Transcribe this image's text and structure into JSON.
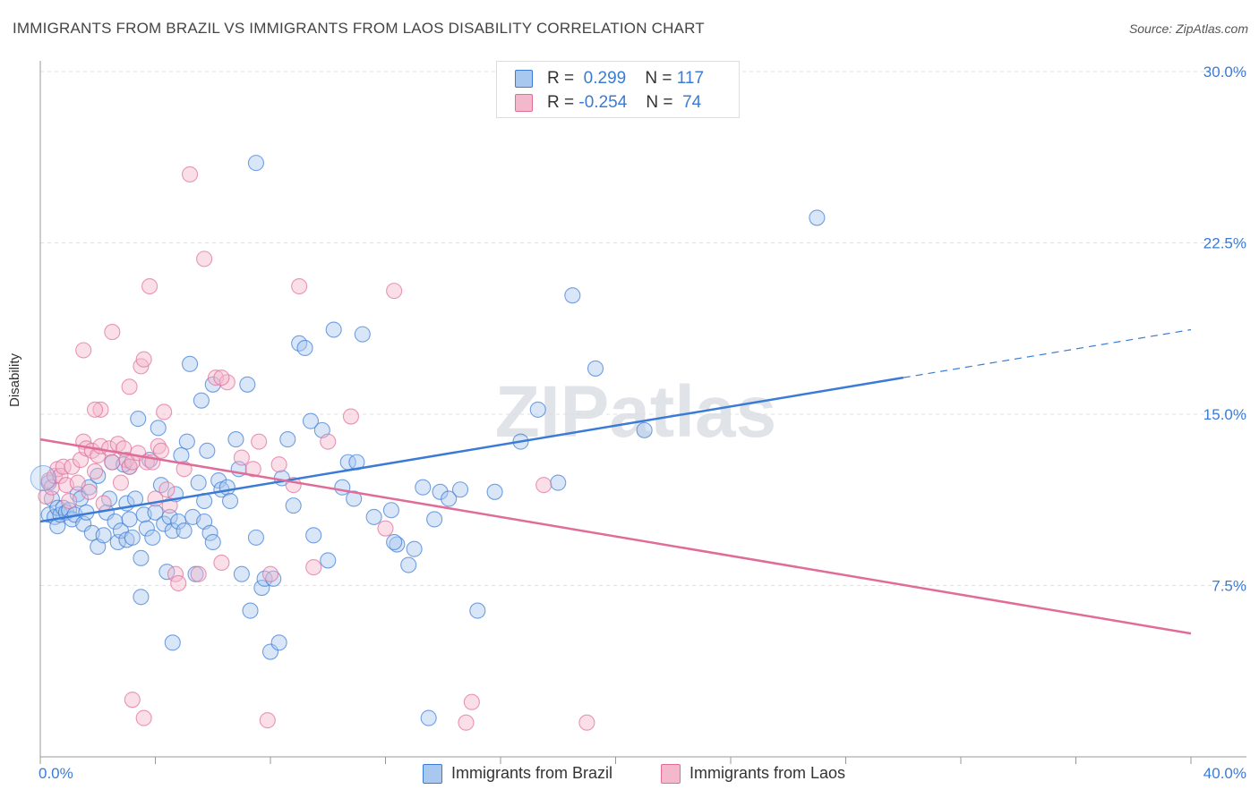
{
  "title": "IMMIGRANTS FROM BRAZIL VS IMMIGRANTS FROM LAOS DISABILITY CORRELATION CHART",
  "source": "Source: ZipAtlas.com",
  "watermark": "ZIPatlas",
  "legend": {
    "rows": [
      {
        "r_label": "R =",
        "r_value": "0.299",
        "n_label": "N =",
        "n_value": "117"
      },
      {
        "r_label": "R =",
        "r_value": "-0.254",
        "n_label": "N =",
        "n_value": "74"
      }
    ]
  },
  "colors": {
    "brazil": "#3a7bd5",
    "brazil_fill": "#a9c8f0",
    "laos": "#e06c98",
    "laos_fill": "#f4b8cc",
    "grid": "#e0e0e0",
    "tick_label": "#3a7bd5"
  },
  "chart_data": {
    "type": "scatter",
    "title": "IMMIGRANTS FROM BRAZIL VS IMMIGRANTS FROM LAOS DISABILITY CORRELATION CHART",
    "xlabel": "",
    "ylabel": "Disability",
    "xlim": [
      0,
      40
    ],
    "ylim": [
      0,
      30
    ],
    "x_tick_labels": [
      "0.0%",
      "40.0%"
    ],
    "y_ticks": [
      7.5,
      15.0,
      22.5,
      30.0
    ],
    "y_tick_labels": [
      "7.5%",
      "15.0%",
      "22.5%",
      "30.0%"
    ],
    "grid": true,
    "legend_position": "top-center",
    "series": [
      {
        "name": "Immigrants from Brazil",
        "color": "#3a7bd5",
        "trend": {
          "x": [
            0,
            30.0
          ],
          "y": [
            10.3,
            16.6
          ],
          "extend_dashed_to": {
            "x": 40,
            "y": 18.7
          }
        },
        "points": [
          [
            0.3,
            12.0
          ],
          [
            0.3,
            10.6
          ],
          [
            0.4,
            11.3
          ],
          [
            0.5,
            10.5
          ],
          [
            0.6,
            10.9
          ],
          [
            0.6,
            10.1
          ],
          [
            0.7,
            10.6
          ],
          [
            0.8,
            10.9
          ],
          [
            0.9,
            10.7
          ],
          [
            1.0,
            10.8
          ],
          [
            1.1,
            10.4
          ],
          [
            1.2,
            10.6
          ],
          [
            1.3,
            11.5
          ],
          [
            1.4,
            11.3
          ],
          [
            1.5,
            10.2
          ],
          [
            1.6,
            10.7
          ],
          [
            1.7,
            11.8
          ],
          [
            1.8,
            9.8
          ],
          [
            2.0,
            9.2
          ],
          [
            2.0,
            12.3
          ],
          [
            2.2,
            9.7
          ],
          [
            2.3,
            10.7
          ],
          [
            2.4,
            11.3
          ],
          [
            2.5,
            12.9
          ],
          [
            2.6,
            10.3
          ],
          [
            2.7,
            9.4
          ],
          [
            2.8,
            9.9
          ],
          [
            3.0,
            9.5
          ],
          [
            3.0,
            11.1
          ],
          [
            3.1,
            10.4
          ],
          [
            3.2,
            9.6
          ],
          [
            3.3,
            11.3
          ],
          [
            3.4,
            14.8
          ],
          [
            3.5,
            8.7
          ],
          [
            3.6,
            10.6
          ],
          [
            3.7,
            10.0
          ],
          [
            3.8,
            13.0
          ],
          [
            3.9,
            9.6
          ],
          [
            4.0,
            10.7
          ],
          [
            4.1,
            14.4
          ],
          [
            4.2,
            11.9
          ],
          [
            4.3,
            10.2
          ],
          [
            4.4,
            8.1
          ],
          [
            4.5,
            10.5
          ],
          [
            4.6,
            9.9
          ],
          [
            4.7,
            11.5
          ],
          [
            4.8,
            10.3
          ],
          [
            4.9,
            13.2
          ],
          [
            5.0,
            9.9
          ],
          [
            5.1,
            13.8
          ],
          [
            5.2,
            17.2
          ],
          [
            5.3,
            10.5
          ],
          [
            5.4,
            8.0
          ],
          [
            5.5,
            12.0
          ],
          [
            5.6,
            15.6
          ],
          [
            5.7,
            10.3
          ],
          [
            5.8,
            13.4
          ],
          [
            5.9,
            9.8
          ],
          [
            6.0,
            16.3
          ],
          [
            6.2,
            12.1
          ],
          [
            6.3,
            11.7
          ],
          [
            6.5,
            11.8
          ],
          [
            6.6,
            11.2
          ],
          [
            6.8,
            13.9
          ],
          [
            6.9,
            12.6
          ],
          [
            7.0,
            8.0
          ],
          [
            7.2,
            16.3
          ],
          [
            7.3,
            6.4
          ],
          [
            7.5,
            9.6
          ],
          [
            7.7,
            7.4
          ],
          [
            7.8,
            7.8
          ],
          [
            8.0,
            4.6
          ],
          [
            8.3,
            5.0
          ],
          [
            8.4,
            12.2
          ],
          [
            8.6,
            13.9
          ],
          [
            8.8,
            11.0
          ],
          [
            9.0,
            18.1
          ],
          [
            9.2,
            17.9
          ],
          [
            9.4,
            14.7
          ],
          [
            9.5,
            9.7
          ],
          [
            9.8,
            14.3
          ],
          [
            10.0,
            8.6
          ],
          [
            10.2,
            18.7
          ],
          [
            10.5,
            11.8
          ],
          [
            10.7,
            12.9
          ],
          [
            10.9,
            11.3
          ],
          [
            11.0,
            12.9
          ],
          [
            11.2,
            18.5
          ],
          [
            11.6,
            10.5
          ],
          [
            12.2,
            10.8
          ],
          [
            12.4,
            9.3
          ],
          [
            12.8,
            8.4
          ],
          [
            13.0,
            9.1
          ],
          [
            13.3,
            11.8
          ],
          [
            13.5,
            1.7
          ],
          [
            13.7,
            10.4
          ],
          [
            13.9,
            11.6
          ],
          [
            14.2,
            11.3
          ],
          [
            14.6,
            11.7
          ],
          [
            15.2,
            6.4
          ],
          [
            15.8,
            11.6
          ],
          [
            16.7,
            13.8
          ],
          [
            17.3,
            15.2
          ],
          [
            18.0,
            12.0
          ],
          [
            18.5,
            20.2
          ],
          [
            19.3,
            17.0
          ],
          [
            21.0,
            14.3
          ],
          [
            27.0,
            23.6
          ],
          [
            7.5,
            26.0
          ],
          [
            3.1,
            12.7
          ],
          [
            4.6,
            5.0
          ],
          [
            5.7,
            11.2
          ],
          [
            6.0,
            9.4
          ],
          [
            2.9,
            12.8
          ],
          [
            8.1,
            7.8
          ],
          [
            12.3,
            9.4
          ],
          [
            3.5,
            7.0
          ]
        ]
      },
      {
        "name": "Immigrants from Laos",
        "color": "#e06c98",
        "trend": {
          "x": [
            0,
            40
          ],
          "y": [
            13.9,
            5.4
          ]
        },
        "points": [
          [
            0.2,
            11.4
          ],
          [
            0.3,
            12.1
          ],
          [
            0.4,
            11.8
          ],
          [
            0.5,
            12.3
          ],
          [
            0.6,
            12.6
          ],
          [
            0.7,
            12.3
          ],
          [
            0.8,
            12.7
          ],
          [
            0.9,
            11.9
          ],
          [
            1.0,
            11.2
          ],
          [
            1.1,
            12.7
          ],
          [
            1.3,
            12.0
          ],
          [
            1.4,
            13.0
          ],
          [
            1.5,
            13.8
          ],
          [
            1.6,
            13.5
          ],
          [
            1.7,
            11.6
          ],
          [
            1.8,
            13.4
          ],
          [
            1.9,
            12.5
          ],
          [
            2.0,
            13.2
          ],
          [
            2.1,
            13.6
          ],
          [
            2.2,
            11.1
          ],
          [
            2.4,
            13.5
          ],
          [
            2.5,
            12.9
          ],
          [
            2.7,
            13.7
          ],
          [
            2.8,
            12.0
          ],
          [
            2.9,
            13.5
          ],
          [
            3.0,
            13.0
          ],
          [
            3.1,
            12.7
          ],
          [
            3.2,
            12.9
          ],
          [
            3.4,
            13.3
          ],
          [
            3.5,
            17.1
          ],
          [
            3.6,
            17.4
          ],
          [
            3.7,
            12.9
          ],
          [
            3.8,
            20.6
          ],
          [
            3.9,
            12.9
          ],
          [
            4.0,
            11.3
          ],
          [
            4.1,
            13.6
          ],
          [
            4.2,
            13.4
          ],
          [
            4.3,
            15.1
          ],
          [
            4.4,
            11.7
          ],
          [
            4.5,
            11.0
          ],
          [
            4.7,
            8.0
          ],
          [
            4.8,
            7.6
          ],
          [
            5.0,
            12.6
          ],
          [
            5.2,
            25.5
          ],
          [
            5.5,
            8.0
          ],
          [
            5.7,
            21.8
          ],
          [
            6.1,
            16.6
          ],
          [
            6.3,
            8.5
          ],
          [
            6.5,
            16.4
          ],
          [
            7.0,
            13.1
          ],
          [
            7.4,
            12.6
          ],
          [
            7.6,
            13.8
          ],
          [
            8.0,
            8.0
          ],
          [
            8.3,
            12.8
          ],
          [
            8.8,
            11.9
          ],
          [
            9.0,
            20.6
          ],
          [
            9.5,
            8.3
          ],
          [
            10.0,
            13.8
          ],
          [
            10.8,
            14.9
          ],
          [
            12.0,
            10.0
          ],
          [
            12.3,
            20.4
          ],
          [
            15.0,
            2.4
          ],
          [
            17.5,
            11.9
          ],
          [
            19.0,
            1.5
          ],
          [
            1.5,
            17.8
          ],
          [
            2.1,
            15.2
          ],
          [
            2.5,
            18.6
          ],
          [
            3.1,
            16.2
          ],
          [
            3.2,
            2.5
          ],
          [
            3.6,
            1.7
          ],
          [
            7.9,
            1.6
          ],
          [
            14.8,
            1.5
          ],
          [
            6.3,
            16.6
          ],
          [
            1.9,
            15.2
          ]
        ]
      }
    ]
  },
  "bottom_legend": {
    "items": [
      {
        "label": "Immigrants from Brazil"
      },
      {
        "label": "Immigrants from Laos"
      }
    ]
  }
}
